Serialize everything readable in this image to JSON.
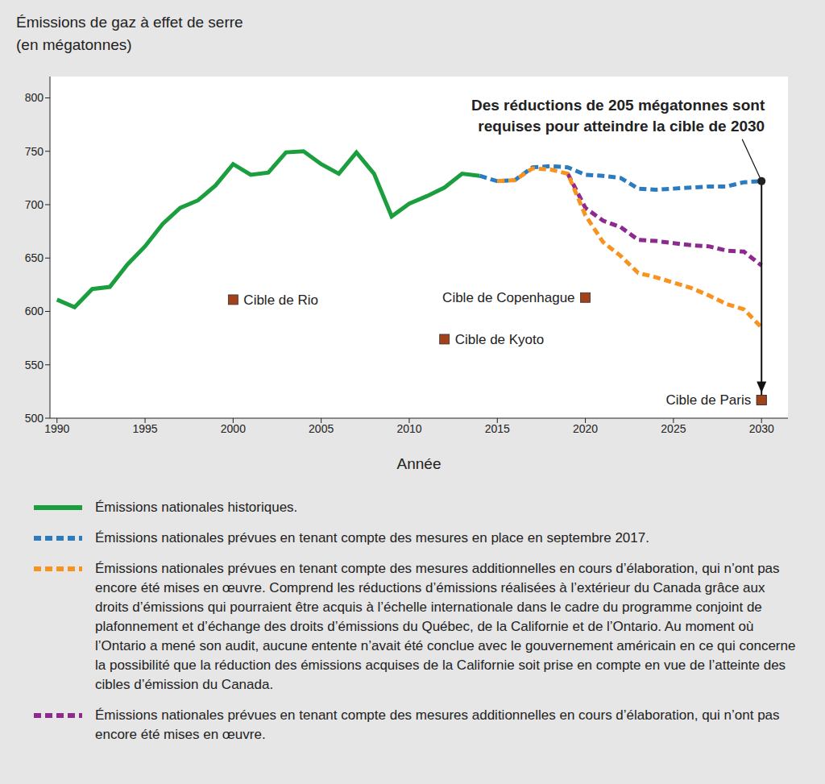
{
  "chart_data": {
    "type": "line",
    "title": "Émissions de gaz à effet de serre",
    "subtitle": "(en mégatonnes)",
    "x_label": "Année",
    "x": [
      1990,
      1991,
      1992,
      1993,
      1994,
      1995,
      1996,
      1997,
      1998,
      1999,
      2000,
      2001,
      2002,
      2003,
      2004,
      2005,
      2006,
      2007,
      2008,
      2009,
      2010,
      2011,
      2012,
      2013,
      2014,
      2015,
      2016,
      2017,
      2018,
      2019,
      2020,
      2021,
      2022,
      2023,
      2024,
      2025,
      2026,
      2027,
      2028,
      2029,
      2030
    ],
    "series": [
      {
        "name": "Émissions nationales historiques.",
        "color": "#1b9e3e",
        "line_style": "solid",
        "values": [
          611,
          604,
          621,
          623,
          644,
          661,
          682,
          697,
          704,
          718,
          738,
          728,
          730,
          749,
          750,
          738,
          729,
          749,
          729,
          689,
          701,
          708,
          716,
          729,
          727,
          null,
          null,
          null,
          null,
          null,
          null,
          null,
          null,
          null,
          null,
          null,
          null,
          null,
          null,
          null,
          null
        ]
      },
      {
        "name": "Émissions nationales prévues en tenant compte des mesures en place en septembre 2017.",
        "color": "#2b7bc0",
        "line_style": "dashed",
        "values": [
          null,
          null,
          null,
          null,
          null,
          null,
          null,
          null,
          null,
          null,
          null,
          null,
          null,
          null,
          null,
          null,
          null,
          null,
          null,
          null,
          null,
          null,
          null,
          null,
          727,
          722,
          723,
          735,
          736,
          735,
          728,
          727,
          725,
          715,
          714,
          715,
          716,
          717,
          717,
          721,
          722
        ]
      },
      {
        "name": "Émissions nationales prévues en tenant compte des mesures additionnelles en cours d’élaboration, qui n’ont pas encore été mises en œuvre. Comprend les réductions d’émissions réalisées à l’extérieur du Canada grâce aux droits d’émissions qui pourraient être acquis à l’échelle internationale dans le cadre du programme conjoint de plafonnement et d’échange des droits d’émissions du Québec, de la Californie et de l’Ontario. Au moment où l’Ontario a mené son audit, aucune entente n’avait été conclue avec le gouvernement américain en ce qui concerne la possibilité que la réduction des émissions acquises de la Californie soit prise en compte en vue de l’atteinte des cibles d’émission du Canada.",
        "color": "#f7931e",
        "line_style": "dashed",
        "values": [
          null,
          null,
          null,
          null,
          null,
          null,
          null,
          null,
          null,
          null,
          null,
          null,
          null,
          null,
          null,
          null,
          null,
          null,
          null,
          null,
          null,
          null,
          null,
          null,
          null,
          722,
          723,
          734,
          733,
          729,
          690,
          665,
          652,
          636,
          632,
          627,
          622,
          615,
          607,
          602,
          585
        ]
      },
      {
        "name": "Émissions nationales prévues en tenant compte des mesures additionnelles en cours d’élaboration, qui n’ont pas encore été mises en œuvre.",
        "color": "#8e2a8f",
        "line_style": "dashed",
        "values": [
          null,
          null,
          null,
          null,
          null,
          null,
          null,
          null,
          null,
          null,
          null,
          null,
          null,
          null,
          null,
          null,
          null,
          null,
          null,
          null,
          null,
          null,
          null,
          null,
          null,
          null,
          null,
          null,
          null,
          729,
          697,
          685,
          679,
          667,
          666,
          664,
          662,
          661,
          657,
          656,
          643
        ]
      }
    ],
    "targets": {
      "color": "#a2421b",
      "marker": "square",
      "points": [
        {
          "label": "Cible de Rio",
          "x": 2000,
          "y": 611
        },
        {
          "label": "Cible de Kyoto",
          "x": 2012,
          "y": 574
        },
        {
          "label": "Cible de Copenhague",
          "x": 2020,
          "y": 613
        },
        {
          "label": "Cible de Paris",
          "x": 2030,
          "y": 517
        }
      ]
    },
    "annotation": {
      "text": [
        "Des réductions de 205 mégatonnes sont",
        "requises pour atteindre la cible de 2030"
      ],
      "x": 2030,
      "y_from": 722,
      "y_to": 517
    },
    "xlim": [
      1989.6,
      2031.5
    ],
    "xticks": [
      1990,
      1995,
      2000,
      2005,
      2010,
      2015,
      2020,
      2025,
      2030
    ],
    "ylim": [
      500,
      820
    ],
    "yticks": [
      500,
      550,
      600,
      650,
      700,
      750,
      800
    ],
    "grid": false,
    "legend": "bottom"
  }
}
